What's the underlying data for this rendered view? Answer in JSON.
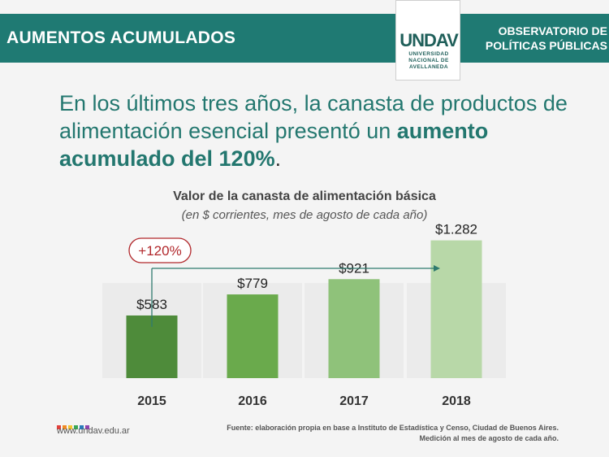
{
  "header": {
    "title": "AUMENTOS ACUMULADOS",
    "logo_mark": "UNDAV",
    "logo_text": "UNIVERSIDAD NACIONAL DE AVELLANEDA",
    "observatory_line1": "OBSERVATORIO DE",
    "observatory_line2": "POLÍTICAS PÚBLICAS"
  },
  "headline": {
    "part1": "En los últimos tres años, la canasta de productos de alimentación esencial presentó un ",
    "bold": "aumento acumulado del 120%",
    "end": "."
  },
  "chart_data": {
    "type": "bar",
    "title": "Valor de la canasta de alimentación básica",
    "subtitle": "(en $ corrientes, mes de agosto de cada año)",
    "categories": [
      "2015",
      "2016",
      "2017",
      "2018"
    ],
    "values": [
      583,
      779,
      921,
      1282
    ],
    "value_labels": [
      "$583",
      "$779",
      "$921",
      "$1.282"
    ],
    "ylim": [
      0,
      1400
    ],
    "colors": [
      "#4e8b3a",
      "#6aaa4c",
      "#8fc27a",
      "#b8d8a8"
    ],
    "annotation": "+120%",
    "annotation_color": "#b1272b",
    "grid": false,
    "legend": "none"
  },
  "footer": {
    "url": "www.undav.edu.ar",
    "dot_colors": [
      "#e2403b",
      "#f08a24",
      "#f4c430",
      "#3aa655",
      "#2b7bb9",
      "#8e44ad"
    ],
    "source_line1": "Fuente: elaboración propia en base a Instituto de Estadística y Censo, Ciudad de Buenos Aires.",
    "source_line2": "Medición al mes de agosto de cada año."
  }
}
